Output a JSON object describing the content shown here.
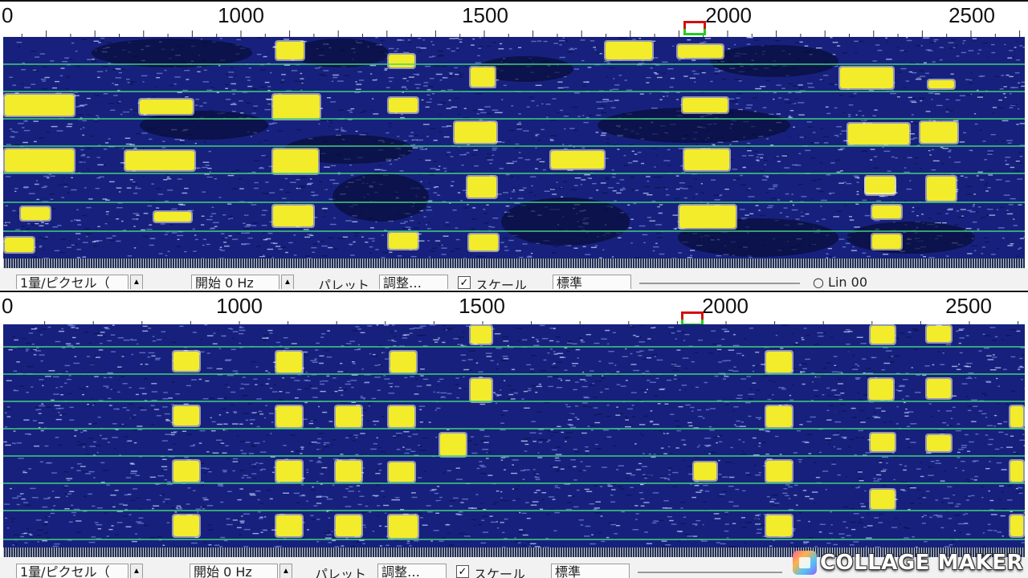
{
  "panels": [
    {
      "id": "top",
      "ruler": {
        "labels": [
          "0",
          "1000",
          "1500",
          "2000",
          "2500"
        ]
      },
      "toolbar": {
        "item1": "1量/ピクセル（",
        "item2": "開始 0 Hz",
        "item3": "パレット",
        "item4": "調整…",
        "item5": "スケール",
        "item6": "標準",
        "item7": "○ Lin 00"
      }
    },
    {
      "id": "bottom",
      "ruler": {
        "labels": [
          "0",
          "1000",
          "1500",
          "2000",
          "2500"
        ]
      },
      "toolbar": {
        "item1": "1量/ピクセル（",
        "item2": "開始 0 Hz",
        "item3": "パレット",
        "item4": "調整…",
        "item5": "スケール",
        "item6": "標準",
        "item7": ""
      }
    }
  ],
  "watermark": {
    "text": "COLLAGE MAKER"
  },
  "colors": {
    "waterfall_bg": "#17217d",
    "signal": "#f2ec2a",
    "grid": "#3fd27a",
    "marker_red": "#d21010",
    "marker_green": "#22cc22"
  }
}
